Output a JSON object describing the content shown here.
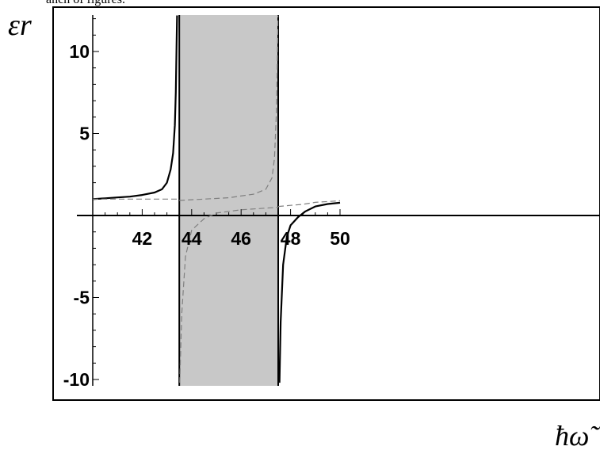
{
  "caption": "anch of figures.",
  "chart_data": {
    "type": "line",
    "title": "",
    "ylabel": "εr",
    "xlabel": "ħω̃",
    "xlim": [
      40,
      50
    ],
    "ylim": [
      -10.5,
      12.2
    ],
    "x_ticks": [
      42,
      44,
      46,
      48,
      50
    ],
    "y_ticks": [
      10,
      5,
      -5,
      -10
    ],
    "shaded_band": {
      "x_start": 43.5,
      "x_end": 47.5,
      "color": "#c8c8c8"
    },
    "series": [
      {
        "style": "solid",
        "color": "#000000",
        "segments": [
          [
            [
              40,
              1.0
            ],
            [
              40.5,
              1.05
            ],
            [
              41,
              1.1
            ],
            [
              41.5,
              1.15
            ],
            [
              42,
              1.25
            ],
            [
              42.5,
              1.4
            ],
            [
              42.8,
              1.6
            ],
            [
              43.0,
              2.0
            ],
            [
              43.15,
              2.8
            ],
            [
              43.25,
              3.8
            ],
            [
              43.32,
              5.5
            ],
            [
              43.36,
              7.5
            ],
            [
              43.39,
              10.5
            ],
            [
              43.41,
              12.2
            ]
          ],
          [
            [
              47.55,
              -10.2
            ],
            [
              47.6,
              -6.5
            ],
            [
              47.7,
              -3.0
            ],
            [
              47.85,
              -1.3
            ],
            [
              48,
              -0.6
            ],
            [
              48.3,
              -0.1
            ],
            [
              48.6,
              0.25
            ],
            [
              49,
              0.55
            ],
            [
              49.5,
              0.7
            ],
            [
              50,
              0.78
            ]
          ]
        ]
      },
      {
        "style": "dashed",
        "color": "#808080",
        "segments": [
          [
            [
              40,
              1.0
            ],
            [
              43.4,
              1.0
            ]
          ],
          [
            [
              43.52,
              -10.2
            ],
            [
              43.6,
              -6.0
            ],
            [
              43.75,
              -2.5
            ],
            [
              44,
              -0.9
            ],
            [
              44.5,
              -0.2
            ],
            [
              45,
              0.15
            ],
            [
              46,
              0.35
            ],
            [
              47,
              0.45
            ],
            [
              47.5,
              0.5
            ]
          ],
          [
            [
              43.5,
              0.92
            ],
            [
              44.5,
              1.0
            ],
            [
              45.5,
              1.08
            ],
            [
              46.5,
              1.3
            ],
            [
              47,
              1.6
            ],
            [
              47.25,
              2.3
            ],
            [
              47.35,
              3.5
            ],
            [
              47.42,
              6.0
            ],
            [
              47.46,
              9.0
            ],
            [
              47.49,
              12.2
            ]
          ],
          [
            [
              47.5,
              0.55
            ],
            [
              48,
              0.62
            ],
            [
              48.5,
              0.68
            ],
            [
              49,
              0.8
            ],
            [
              49.5,
              0.85
            ],
            [
              50,
              0.9
            ]
          ]
        ]
      }
    ]
  }
}
